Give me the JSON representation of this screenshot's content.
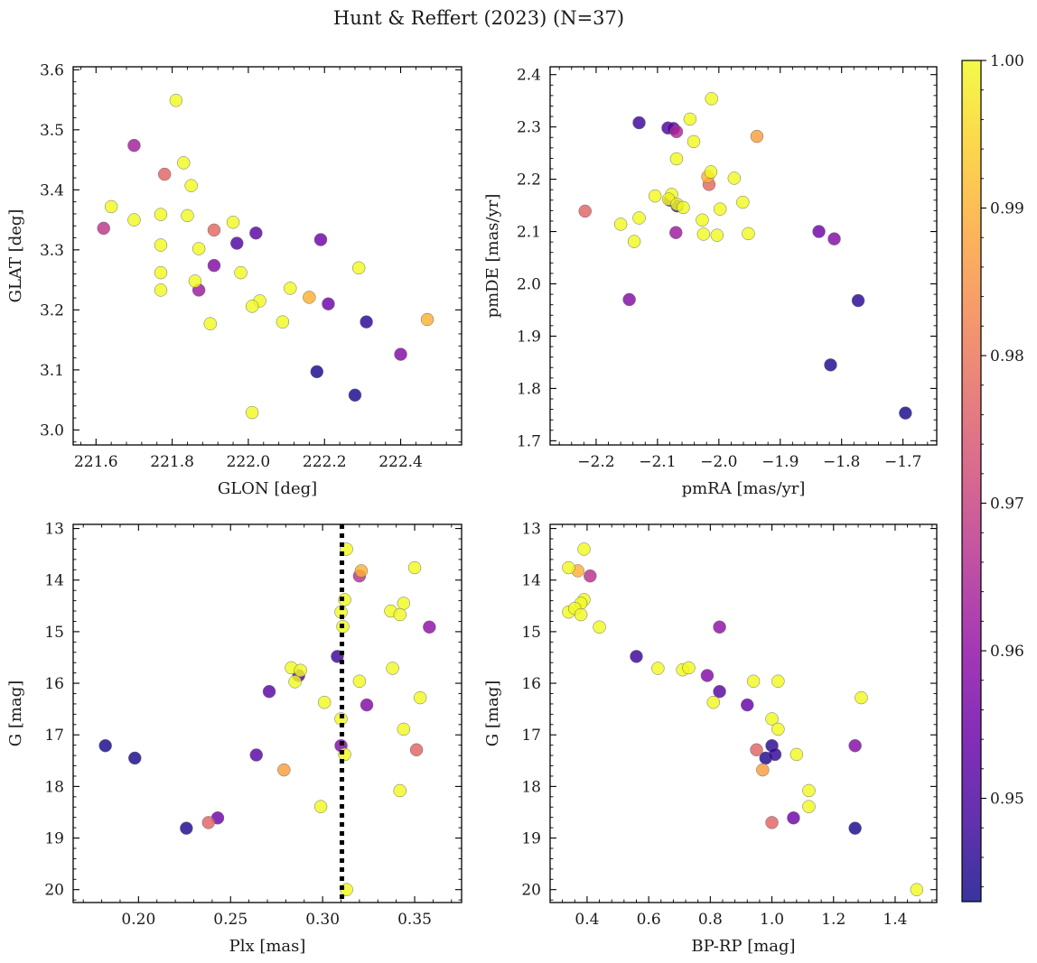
{
  "figure": {
    "title": "Hunt & Reffert (2023) (N=37)"
  },
  "colorbar": {
    "ticks": [
      "0.95",
      "0.96",
      "0.97",
      "0.98",
      "0.99",
      "1.00"
    ],
    "tick_values": [
      0.95,
      0.96,
      0.97,
      0.98,
      0.99,
      1.0
    ],
    "range": [
      0.943,
      1.0
    ],
    "colormap": "plasma"
  },
  "chart_data": [
    {
      "type": "scatter",
      "name": "glon-glat",
      "title": "",
      "xlabel": "GLON [deg]",
      "ylabel": "GLAT [deg]",
      "xlim": [
        221.54,
        222.56
      ],
      "ylim": [
        2.975,
        3.605
      ],
      "xticks": [
        "221.6",
        "221.8",
        "222.0",
        "222.2",
        "222.4"
      ],
      "xtick_values": [
        221.6,
        221.8,
        222.0,
        222.2,
        222.4
      ],
      "yticks": [
        "3.0",
        "3.1",
        "3.2",
        "3.3",
        "3.4",
        "3.5",
        "3.6"
      ],
      "ytick_values": [
        3.0,
        3.1,
        3.2,
        3.3,
        3.4,
        3.5,
        3.6
      ],
      "y_inverted": false,
      "points": [
        {
          "x": 221.81,
          "y": 3.549,
          "c": 1.0
        },
        {
          "x": 221.83,
          "y": 3.445,
          "c": 1.0
        },
        {
          "x": 221.85,
          "y": 3.407,
          "c": 1.0
        },
        {
          "x": 221.64,
          "y": 3.372,
          "c": 1.0
        },
        {
          "x": 221.77,
          "y": 3.359,
          "c": 1.0
        },
        {
          "x": 221.84,
          "y": 3.357,
          "c": 1.0
        },
        {
          "x": 221.7,
          "y": 3.35,
          "c": 1.0
        },
        {
          "x": 221.96,
          "y": 3.346,
          "c": 1.0
        },
        {
          "x": 221.77,
          "y": 3.308,
          "c": 1.0
        },
        {
          "x": 221.87,
          "y": 3.302,
          "c": 1.0
        },
        {
          "x": 222.29,
          "y": 3.27,
          "c": 1.0
        },
        {
          "x": 221.77,
          "y": 3.262,
          "c": 1.0
        },
        {
          "x": 221.98,
          "y": 3.262,
          "c": 1.0
        },
        {
          "x": 221.86,
          "y": 3.248,
          "c": 1.0
        },
        {
          "x": 222.11,
          "y": 3.236,
          "c": 1.0
        },
        {
          "x": 221.77,
          "y": 3.233,
          "c": 1.0
        },
        {
          "x": 222.03,
          "y": 3.215,
          "c": 1.0
        },
        {
          "x": 222.01,
          "y": 3.206,
          "c": 1.0
        },
        {
          "x": 222.09,
          "y": 3.18,
          "c": 1.0
        },
        {
          "x": 221.9,
          "y": 3.177,
          "c": 1.0
        },
        {
          "x": 222.01,
          "y": 3.029,
          "c": 1.0
        },
        {
          "x": 222.47,
          "y": 3.184,
          "c": 0.99
        },
        {
          "x": 222.16,
          "y": 3.221,
          "c": 0.99
        },
        {
          "x": 221.91,
          "y": 3.333,
          "c": 0.978
        },
        {
          "x": 221.78,
          "y": 3.426,
          "c": 0.977
        },
        {
          "x": 221.62,
          "y": 3.336,
          "c": 0.968
        },
        {
          "x": 221.7,
          "y": 3.474,
          "c": 0.963
        },
        {
          "x": 221.87,
          "y": 3.233,
          "c": 0.962
        },
        {
          "x": 222.4,
          "y": 3.126,
          "c": 0.958
        },
        {
          "x": 221.91,
          "y": 3.274,
          "c": 0.958
        },
        {
          "x": 222.19,
          "y": 3.317,
          "c": 0.955
        },
        {
          "x": 222.21,
          "y": 3.21,
          "c": 0.955
        },
        {
          "x": 222.02,
          "y": 3.328,
          "c": 0.952
        },
        {
          "x": 221.97,
          "y": 3.311,
          "c": 0.951
        },
        {
          "x": 222.31,
          "y": 3.18,
          "c": 0.946
        },
        {
          "x": 222.18,
          "y": 3.097,
          "c": 0.944
        },
        {
          "x": 222.28,
          "y": 3.058,
          "c": 0.944
        }
      ]
    },
    {
      "type": "scatter",
      "name": "pm",
      "title": "",
      "xlabel": "pmRA [mas/yr]",
      "ylabel": "pmDE [mas/yr]",
      "xlim": [
        -2.275,
        -1.645
      ],
      "ylim": [
        1.692,
        2.415
      ],
      "xticks": [
        "−2.2",
        "−2.1",
        "−2.0",
        "−1.9",
        "−1.8",
        "−1.7"
      ],
      "xtick_values": [
        -2.2,
        -2.1,
        -2.0,
        -1.9,
        -1.8,
        -1.7
      ],
      "yticks": [
        "1.7",
        "1.8",
        "1.9",
        "2.0",
        "2.1",
        "2.2",
        "2.3",
        "2.4"
      ],
      "ytick_values": [
        1.7,
        1.8,
        1.9,
        2.0,
        2.1,
        2.2,
        2.3,
        2.4
      ],
      "y_inverted": false,
      "points": [
        {
          "x": -2.012,
          "y": 2.354,
          "c": 1.0
        },
        {
          "x": -2.047,
          "y": 2.315,
          "c": 1.0
        },
        {
          "x": -2.041,
          "y": 2.272,
          "c": 1.0
        },
        {
          "x": -2.069,
          "y": 2.239,
          "c": 1.0
        },
        {
          "x": -2.013,
          "y": 2.214,
          "c": 1.0
        },
        {
          "x": -1.975,
          "y": 2.202,
          "c": 1.0
        },
        {
          "x": -2.104,
          "y": 2.168,
          "c": 1.0
        },
        {
          "x": -2.077,
          "y": 2.171,
          "c": 1.0
        },
        {
          "x": -2.082,
          "y": 2.162,
          "c": 1.0
        },
        {
          "x": -1.961,
          "y": 2.156,
          "c": 1.0
        },
        {
          "x": -2.068,
          "y": 2.152,
          "c": 1.0
        },
        {
          "x": -2.058,
          "y": 2.146,
          "c": 1.0
        },
        {
          "x": -1.998,
          "y": 2.143,
          "c": 1.0
        },
        {
          "x": -2.13,
          "y": 2.126,
          "c": 1.0
        },
        {
          "x": -2.027,
          "y": 2.122,
          "c": 1.0
        },
        {
          "x": -2.16,
          "y": 2.114,
          "c": 1.0
        },
        {
          "x": -2.025,
          "y": 2.095,
          "c": 1.0
        },
        {
          "x": -2.003,
          "y": 2.093,
          "c": 1.0
        },
        {
          "x": -1.952,
          "y": 2.096,
          "c": 1.0
        },
        {
          "x": -2.138,
          "y": 2.081,
          "c": 1.0
        },
        {
          "x": -2.018,
          "y": 2.205,
          "c": 0.99
        },
        {
          "x": -1.938,
          "y": 2.282,
          "c": 0.987
        },
        {
          "x": -2.016,
          "y": 2.19,
          "c": 0.978
        },
        {
          "x": -2.218,
          "y": 2.139,
          "c": 0.977
        },
        {
          "x": -2.069,
          "y": 2.291,
          "c": 0.965
        },
        {
          "x": -2.07,
          "y": 2.098,
          "c": 0.962
        },
        {
          "x": -1.812,
          "y": 2.086,
          "c": 0.958
        },
        {
          "x": -2.146,
          "y": 1.97,
          "c": 0.958
        },
        {
          "x": -1.837,
          "y": 2.1,
          "c": 0.955
        },
        {
          "x": -2.074,
          "y": 2.297,
          "c": 0.952
        },
        {
          "x": -2.083,
          "y": 2.298,
          "c": 0.95
        },
        {
          "x": -2.13,
          "y": 2.308,
          "c": 0.948
        },
        {
          "x": -2.068,
          "y": 2.149,
          "c": 0.946
        },
        {
          "x": -1.773,
          "y": 1.968,
          "c": 0.946
        },
        {
          "x": -1.818,
          "y": 1.845,
          "c": 0.945
        },
        {
          "x": -1.696,
          "y": 1.753,
          "c": 0.944
        },
        {
          "x": -2.08,
          "y": 2.16,
          "c": 0.952
        }
      ]
    },
    {
      "type": "scatter",
      "name": "plx-g",
      "title": "",
      "xlabel": "Plx [mas]",
      "ylabel": "G [mag]",
      "xlim": [
        0.1645,
        0.3755
      ],
      "ylim": [
        20.25,
        12.92
      ],
      "xticks": [
        "0.20",
        "0.25",
        "0.30",
        "0.35"
      ],
      "xtick_values": [
        0.2,
        0.25,
        0.3,
        0.35
      ],
      "yticks": [
        "13",
        "14",
        "15",
        "16",
        "17",
        "18",
        "19",
        "20"
      ],
      "ytick_values": [
        13,
        14,
        15,
        16,
        17,
        18,
        19,
        20
      ],
      "y_inverted": true,
      "vline": 0.3105,
      "points": [
        {
          "x": 0.313,
          "y": 13.4,
          "c": 1.0
        },
        {
          "x": 0.35,
          "y": 13.76,
          "c": 1.0
        },
        {
          "x": 0.312,
          "y": 14.38,
          "c": 1.0
        },
        {
          "x": 0.344,
          "y": 14.45,
          "c": 1.0
        },
        {
          "x": 0.337,
          "y": 14.6,
          "c": 1.0
        },
        {
          "x": 0.31,
          "y": 14.62,
          "c": 1.0
        },
        {
          "x": 0.342,
          "y": 14.67,
          "c": 1.0
        },
        {
          "x": 0.311,
          "y": 14.9,
          "c": 1.0
        },
        {
          "x": 0.283,
          "y": 15.7,
          "c": 1.0
        },
        {
          "x": 0.338,
          "y": 15.71,
          "c": 1.0
        },
        {
          "x": 0.288,
          "y": 15.75,
          "c": 1.0
        },
        {
          "x": 0.32,
          "y": 15.96,
          "c": 1.0
        },
        {
          "x": 0.285,
          "y": 15.97,
          "c": 1.0
        },
        {
          "x": 0.353,
          "y": 16.28,
          "c": 1.0
        },
        {
          "x": 0.301,
          "y": 16.37,
          "c": 1.0
        },
        {
          "x": 0.31,
          "y": 16.69,
          "c": 1.0
        },
        {
          "x": 0.344,
          "y": 16.89,
          "c": 1.0
        },
        {
          "x": 0.312,
          "y": 17.38,
          "c": 1.0
        },
        {
          "x": 0.342,
          "y": 18.08,
          "c": 1.0
        },
        {
          "x": 0.299,
          "y": 18.39,
          "c": 1.0
        },
        {
          "x": 0.313,
          "y": 20.0,
          "c": 1.0
        },
        {
          "x": 0.321,
          "y": 13.82,
          "c": 0.99
        },
        {
          "x": 0.279,
          "y": 17.68,
          "c": 0.987
        },
        {
          "x": 0.351,
          "y": 17.29,
          "c": 0.977
        },
        {
          "x": 0.238,
          "y": 18.7,
          "c": 0.977
        },
        {
          "x": 0.32,
          "y": 13.92,
          "c": 0.967
        },
        {
          "x": 0.358,
          "y": 14.91,
          "c": 0.96
        },
        {
          "x": 0.324,
          "y": 16.42,
          "c": 0.958
        },
        {
          "x": 0.31,
          "y": 17.21,
          "c": 0.958
        },
        {
          "x": 0.243,
          "y": 18.61,
          "c": 0.955
        },
        {
          "x": 0.264,
          "y": 17.39,
          "c": 0.952
        },
        {
          "x": 0.271,
          "y": 16.16,
          "c": 0.952
        },
        {
          "x": 0.287,
          "y": 15.85,
          "c": 0.951
        },
        {
          "x": 0.308,
          "y": 15.48,
          "c": 0.948
        },
        {
          "x": 0.226,
          "y": 18.81,
          "c": 0.945
        },
        {
          "x": 0.182,
          "y": 17.21,
          "c": 0.944
        },
        {
          "x": 0.198,
          "y": 17.45,
          "c": 0.944
        }
      ]
    },
    {
      "type": "scatter",
      "name": "bprp-g",
      "title": "",
      "xlabel": "BP-RP [mag]",
      "ylabel": "G [mag]",
      "xlim": [
        0.28,
        1.535
      ],
      "ylim": [
        20.25,
        12.92
      ],
      "xticks": [
        "0.4",
        "0.6",
        "0.8",
        "1.0",
        "1.2",
        "1.4"
      ],
      "xtick_values": [
        0.4,
        0.6,
        0.8,
        1.0,
        1.2,
        1.4
      ],
      "yticks": [
        "13",
        "14",
        "15",
        "16",
        "17",
        "18",
        "19",
        "20"
      ],
      "ytick_values": [
        13,
        14,
        15,
        16,
        17,
        18,
        19,
        20
      ],
      "y_inverted": true,
      "points": [
        {
          "x": 0.39,
          "y": 13.4,
          "c": 1.0
        },
        {
          "x": 0.34,
          "y": 13.76,
          "c": 1.0
        },
        {
          "x": 0.39,
          "y": 14.38,
          "c": 1.0
        },
        {
          "x": 0.38,
          "y": 14.45,
          "c": 1.0
        },
        {
          "x": 0.34,
          "y": 14.62,
          "c": 1.0
        },
        {
          "x": 0.36,
          "y": 14.55,
          "c": 1.0
        },
        {
          "x": 0.38,
          "y": 14.67,
          "c": 1.0
        },
        {
          "x": 0.44,
          "y": 14.91,
          "c": 1.0
        },
        {
          "x": 0.63,
          "y": 15.71,
          "c": 1.0
        },
        {
          "x": 0.71,
          "y": 15.74,
          "c": 1.0
        },
        {
          "x": 0.73,
          "y": 15.7,
          "c": 1.0
        },
        {
          "x": 0.94,
          "y": 15.96,
          "c": 1.0
        },
        {
          "x": 1.02,
          "y": 15.96,
          "c": 1.0
        },
        {
          "x": 0.81,
          "y": 16.37,
          "c": 1.0
        },
        {
          "x": 1.29,
          "y": 16.28,
          "c": 1.0
        },
        {
          "x": 1.0,
          "y": 16.69,
          "c": 1.0
        },
        {
          "x": 1.02,
          "y": 16.89,
          "c": 1.0
        },
        {
          "x": 1.08,
          "y": 17.38,
          "c": 1.0
        },
        {
          "x": 1.12,
          "y": 18.08,
          "c": 1.0
        },
        {
          "x": 1.12,
          "y": 18.39,
          "c": 1.0
        },
        {
          "x": 1.47,
          "y": 20.0,
          "c": 1.0
        },
        {
          "x": 0.37,
          "y": 13.82,
          "c": 0.99
        },
        {
          "x": 0.97,
          "y": 17.68,
          "c": 0.987
        },
        {
          "x": 0.95,
          "y": 17.29,
          "c": 0.977
        },
        {
          "x": 1.0,
          "y": 18.7,
          "c": 0.977
        },
        {
          "x": 0.41,
          "y": 13.92,
          "c": 0.967
        },
        {
          "x": 0.83,
          "y": 14.91,
          "c": 0.96
        },
        {
          "x": 0.79,
          "y": 15.85,
          "c": 0.958
        },
        {
          "x": 1.27,
          "y": 17.21,
          "c": 0.958
        },
        {
          "x": 1.07,
          "y": 18.61,
          "c": 0.955
        },
        {
          "x": 0.92,
          "y": 16.42,
          "c": 0.954
        },
        {
          "x": 0.83,
          "y": 16.16,
          "c": 0.952
        },
        {
          "x": 0.56,
          "y": 15.48,
          "c": 0.948
        },
        {
          "x": 1.01,
          "y": 17.38,
          "c": 0.947
        },
        {
          "x": 1.0,
          "y": 17.21,
          "c": 0.946
        },
        {
          "x": 0.98,
          "y": 17.45,
          "c": 0.945
        },
        {
          "x": 1.27,
          "y": 18.81,
          "c": 0.944
        }
      ]
    }
  ]
}
